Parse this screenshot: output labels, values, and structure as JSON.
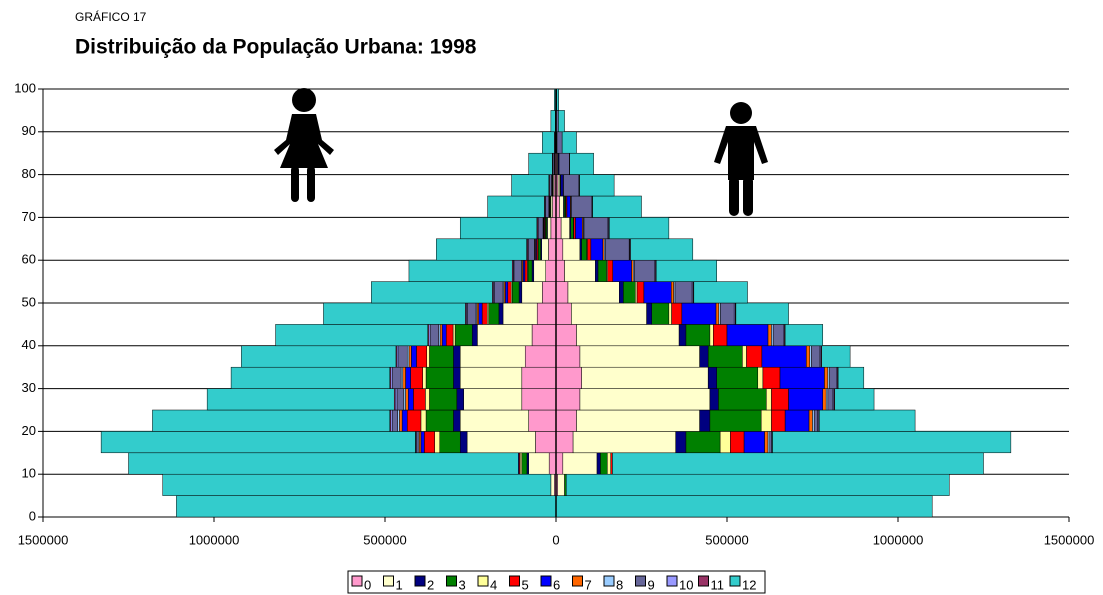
{
  "chart_data": {
    "type": "pyramid",
    "label": "GRÁFICO 17",
    "title": "Distribuição da População Urbana: 1998",
    "y": [
      0,
      5,
      10,
      15,
      20,
      25,
      30,
      35,
      40,
      45,
      50,
      55,
      60,
      65,
      70,
      75,
      80,
      85,
      90,
      95
    ],
    "ylim": [
      0,
      100
    ],
    "yticks": [
      0,
      10,
      20,
      30,
      40,
      50,
      60,
      70,
      80,
      90,
      100
    ],
    "xlim": [
      -1500000,
      1500000
    ],
    "xticks": [
      {
        "value": -1500000,
        "label": "1500000"
      },
      {
        "value": -1000000,
        "label": "1000000"
      },
      {
        "value": -500000,
        "label": "500000"
      },
      0,
      500000,
      1000000,
      1500000
    ],
    "grid": true,
    "legend": "bottom",
    "series": [
      {
        "name": "0",
        "color": "#ff99cc",
        "female": [
          0,
          -5000,
          -20000,
          -60000,
          -80000,
          -100000,
          -100000,
          -90000,
          -70000,
          -55000,
          -40000,
          -30000,
          -22000,
          -15000,
          -10000,
          -6000,
          -4000,
          -2000,
          -1000,
          -500
        ],
        "male": [
          0,
          5000,
          20000,
          50000,
          60000,
          70000,
          75000,
          70000,
          60000,
          45000,
          35000,
          25000,
          20000,
          15000,
          10000,
          6000,
          4000,
          2000,
          1000,
          0
        ]
      },
      {
        "name": "1",
        "color": "#ffffcc",
        "female": [
          0,
          -10000,
          -60000,
          -200000,
          -200000,
          -170000,
          -180000,
          -190000,
          -160000,
          -100000,
          -60000,
          -35000,
          -20000,
          -10000,
          -5000,
          -3000,
          -1000,
          -1000,
          0,
          0
        ],
        "male": [
          0,
          20000,
          100000,
          300000,
          360000,
          380000,
          370000,
          350000,
          300000,
          220000,
          150000,
          90000,
          50000,
          25000,
          12000,
          5000,
          2000,
          1000,
          0,
          0
        ]
      },
      {
        "name": "2",
        "color": "#000080",
        "female": [
          0,
          0,
          -5000,
          -20000,
          -20000,
          -20000,
          -20000,
          -20000,
          -15000,
          -12000,
          -8000,
          -5000,
          -3000,
          -2000,
          -1000,
          -1000,
          0,
          0,
          0,
          0
        ],
        "male": [
          0,
          0,
          10000,
          30000,
          30000,
          25000,
          25000,
          25000,
          20000,
          15000,
          12000,
          8000,
          5000,
          3000,
          2000,
          1000,
          0,
          0,
          0,
          0
        ]
      },
      {
        "name": "3",
        "color": "#008000",
        "female": [
          0,
          0,
          -15000,
          -60000,
          -80000,
          -80000,
          -80000,
          -70000,
          -50000,
          -30000,
          -20000,
          -12000,
          -7000,
          -4000,
          -2000,
          -1000,
          -1000,
          0,
          0,
          0
        ],
        "male": [
          0,
          5000,
          20000,
          100000,
          150000,
          140000,
          120000,
          100000,
          70000,
          50000,
          35000,
          25000,
          15000,
          8000,
          4000,
          2000,
          1000,
          0,
          0,
          0
        ]
      },
      {
        "name": "4",
        "color": "#ffff99",
        "female": [
          0,
          0,
          -5000,
          -15000,
          -15000,
          -12000,
          -10000,
          -8000,
          -6000,
          -4000,
          -3000,
          -2000,
          -1000,
          -1000,
          0,
          0,
          0,
          0,
          0,
          0
        ],
        "male": [
          0,
          0,
          10000,
          30000,
          30000,
          15000,
          15000,
          12000,
          10000,
          8000,
          5000,
          3000,
          2000,
          1000,
          1000,
          0,
          0,
          0,
          0,
          0
        ]
      },
      {
        "name": "5",
        "color": "#ff0000",
        "female": [
          0,
          0,
          -3000,
          -30000,
          -40000,
          -35000,
          -35000,
          -30000,
          -20000,
          -15000,
          -10000,
          -7000,
          -4000,
          -2000,
          -1000,
          -1000,
          0,
          0,
          0,
          0
        ],
        "male": [
          0,
          0,
          5000,
          40000,
          40000,
          50000,
          50000,
          45000,
          40000,
          30000,
          20000,
          15000,
          10000,
          5000,
          3000,
          1000,
          0,
          0,
          0,
          0
        ]
      },
      {
        "name": "6",
        "color": "#0000ff",
        "female": [
          0,
          0,
          -2000,
          -10000,
          -15000,
          -15000,
          -15000,
          -15000,
          -12000,
          -10000,
          -7000,
          -5000,
          -3000,
          -2000,
          -1000,
          -1000,
          0,
          0,
          0,
          0
        ],
        "male": [
          0,
          0,
          0,
          60000,
          70000,
          100000,
          130000,
          130000,
          120000,
          100000,
          80000,
          55000,
          35000,
          20000,
          10000,
          5000,
          2000,
          0,
          0,
          0
        ]
      },
      {
        "name": "7",
        "color": "#ff6600",
        "female": [
          0,
          0,
          0,
          -5000,
          -8000,
          -8000,
          -8000,
          -7000,
          -6000,
          -5000,
          -4000,
          -3000,
          -2000,
          -1000,
          -1000,
          0,
          0,
          0,
          0,
          0
        ],
        "male": [
          0,
          0,
          0,
          10000,
          10000,
          10000,
          10000,
          10000,
          10000,
          8000,
          7000,
          5000,
          4000,
          3000,
          2000,
          1000,
          0,
          0,
          0,
          0
        ]
      },
      {
        "name": "8",
        "color": "#99ccff",
        "female": [
          0,
          0,
          0,
          -3000,
          -5000,
          -5000,
          -5000,
          -5000,
          -4000,
          -3000,
          -3000,
          -2000,
          -1000,
          -1000,
          0,
          0,
          0,
          0,
          0,
          0
        ],
        "male": [
          0,
          0,
          0,
          5000,
          5000,
          5000,
          5000,
          5000,
          5000,
          5000,
          4000,
          3000,
          3000,
          2000,
          1000,
          1000,
          0,
          0,
          0,
          0
        ]
      },
      {
        "name": "9",
        "color": "#666699",
        "female": [
          0,
          0,
          0,
          -5000,
          -15000,
          -20000,
          -25000,
          -25000,
          -25000,
          -25000,
          -25000,
          -22000,
          -18000,
          -14000,
          -10000,
          -6000,
          -4000,
          -2000,
          -1000,
          0
        ],
        "male": [
          0,
          0,
          0,
          5000,
          10000,
          15000,
          20000,
          25000,
          30000,
          40000,
          50000,
          60000,
          70000,
          70000,
          60000,
          45000,
          30000,
          15000,
          6000,
          2000
        ]
      },
      {
        "name": "10",
        "color": "#9999ff",
        "female": [
          0,
          0,
          0,
          -2000,
          -5000,
          -5000,
          -5000,
          -5000,
          -4000,
          -3000,
          -3000,
          -2000,
          -2000,
          -1000,
          -1000,
          0,
          0,
          0,
          0,
          0
        ],
        "male": [
          0,
          0,
          0,
          2000,
          3000,
          3000,
          3000,
          3000,
          3000,
          3000,
          3000,
          2000,
          2000,
          2000,
          1000,
          1000,
          0,
          0,
          0,
          0
        ]
      },
      {
        "name": "11",
        "color": "#993366",
        "female": [
          0,
          0,
          0,
          -1000,
          -3000,
          -3000,
          -3000,
          -3000,
          -3000,
          -3000,
          -3000,
          -3000,
          -3000,
          -3000,
          -2000,
          -2000,
          -1000,
          0,
          0,
          0
        ],
        "male": [
          0,
          0,
          0,
          1000,
          2000,
          2000,
          2000,
          2000,
          2000,
          2000,
          2000,
          2000,
          2000,
          2000,
          1000,
          1000,
          1000,
          0,
          0,
          0
        ]
      },
      {
        "name": "12",
        "color": "#33cccc",
        "female": [
          -1110000,
          -1135000,
          -1140000,
          -919000,
          -694000,
          -547000,
          -464000,
          -452000,
          -445000,
          -415000,
          -354000,
          -302000,
          -264000,
          -224000,
          -166000,
          -109000,
          -69000,
          -35000,
          -13000,
          -4500
        ],
        "male": [
          1100000,
          1120000,
          1085000,
          697000,
          280000,
          115000,
          75000,
          83000,
          110000,
          154000,
          157000,
          177000,
          182000,
          174000,
          143000,
          101000,
          70000,
          42000,
          18000,
          6000
        ]
      }
    ]
  }
}
